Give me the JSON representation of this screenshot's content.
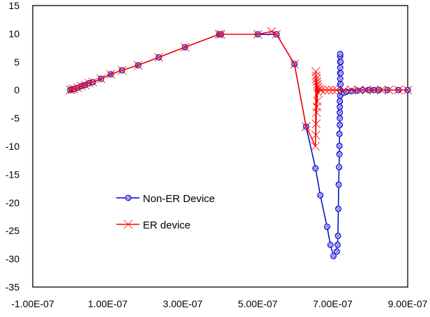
{
  "chart_data": {
    "type": "scatter",
    "title": "",
    "xlabel": "",
    "ylabel": "",
    "xlim": [
      -1e-07,
      9e-07
    ],
    "ylim": [
      -35,
      15
    ],
    "x_ticks": [
      "-1.00E-07",
      "1.00E-07",
      "3.00E-07",
      "5.00E-07",
      "7.00E-07",
      "9.00E-07"
    ],
    "x_tick_values": [
      -1e-07,
      1e-07,
      3e-07,
      5e-07,
      7e-07,
      9e-07
    ],
    "y_ticks": [
      "15",
      "10",
      "5",
      "0",
      "-5",
      "-10",
      "-15",
      "-20",
      "-25",
      "-30",
      "-35"
    ],
    "y_tick_values": [
      15,
      10,
      5,
      0,
      -5,
      -10,
      -15,
      -20,
      -25,
      -30,
      -35
    ],
    "grid": false,
    "legend_placement": "center-left",
    "series": [
      {
        "name": "Non-ER Device",
        "color": "#0000cc",
        "marker": "hatched-circle",
        "points": [
          [
            0,
            0
          ],
          [
            5e-09,
            0.1
          ],
          [
            1e-08,
            0.2
          ],
          [
            2e-08,
            0.4
          ],
          [
            3e-08,
            0.7
          ],
          [
            4e-08,
            0.9
          ],
          [
            5e-08,
            1.2
          ],
          [
            6e-08,
            1.4
          ],
          [
            8.2e-08,
            2.0
          ],
          [
            1.08e-07,
            2.8
          ],
          [
            1.38e-07,
            3.5
          ],
          [
            1.81e-07,
            4.4
          ],
          [
            2.36e-07,
            5.8
          ],
          [
            3.06e-07,
            7.6
          ],
          [
            3.97e-07,
            9.9
          ],
          [
            4.02e-07,
            9.9
          ],
          [
            5e-07,
            9.9
          ],
          [
            5.5e-07,
            9.9
          ],
          [
            5.98e-07,
            4.6
          ],
          [
            6.29e-07,
            -6.5
          ],
          [
            6.54e-07,
            -13.9
          ],
          [
            6.67e-07,
            -18.7
          ],
          [
            6.85e-07,
            -24.3
          ],
          [
            6.94e-07,
            -27.5
          ],
          [
            7.02e-07,
            -29.5
          ],
          [
            7.11e-07,
            -28.7
          ],
          [
            7.13e-07,
            -27.5
          ],
          [
            7.14e-07,
            -25.9
          ],
          [
            7.15e-07,
            -21.1
          ],
          [
            7.16e-07,
            -16.8
          ],
          [
            7.17e-07,
            -13.7
          ],
          [
            7.18e-07,
            -11.4
          ],
          [
            7.18e-07,
            -9.9
          ],
          [
            7.18e-07,
            -7.8
          ],
          [
            7.19e-07,
            -6.2
          ],
          [
            7.19e-07,
            -5
          ],
          [
            7.19e-07,
            -4
          ],
          [
            7.19e-07,
            -3
          ],
          [
            7.19e-07,
            -2
          ],
          [
            7.2e-07,
            -1
          ],
          [
            7.2e-07,
            0
          ],
          [
            7.2e-07,
            1
          ],
          [
            7.2e-07,
            2
          ],
          [
            7.2e-07,
            3
          ],
          [
            7.2e-07,
            4
          ],
          [
            7.2e-07,
            5
          ],
          [
            7.2e-07,
            6
          ],
          [
            7.2e-07,
            6.4
          ],
          [
            7.21e-07,
            5
          ],
          [
            7.21e-07,
            3
          ],
          [
            7.21e-07,
            1
          ],
          [
            7.22e-07,
            -0.3
          ],
          [
            7.3e-07,
            -0.5
          ],
          [
            7.37e-07,
            -0.3
          ],
          [
            7.5e-07,
            -0.2
          ],
          [
            7.66e-07,
            -0.1
          ],
          [
            7.8e-07,
            0
          ],
          [
            7.95e-07,
            0
          ],
          [
            8.1e-07,
            0
          ],
          [
            8.24e-07,
            0
          ],
          [
            8.46e-07,
            0
          ],
          [
            8.75e-07,
            0
          ],
          [
            9e-07,
            0
          ]
        ]
      },
      {
        "name": "ER device",
        "color": "#ff0000",
        "marker": "x",
        "points": [
          [
            0,
            0
          ],
          [
            5e-09,
            0.1
          ],
          [
            1e-08,
            0.2
          ],
          [
            2e-08,
            0.4
          ],
          [
            3e-08,
            0.7
          ],
          [
            4e-08,
            0.9
          ],
          [
            5e-08,
            1.2
          ],
          [
            6e-08,
            1.4
          ],
          [
            8.2e-08,
            2.0
          ],
          [
            1.08e-07,
            2.8
          ],
          [
            1.38e-07,
            3.5
          ],
          [
            1.81e-07,
            4.4
          ],
          [
            2.36e-07,
            5.8
          ],
          [
            3.06e-07,
            7.6
          ],
          [
            3.97e-07,
            9.9
          ],
          [
            4.02e-07,
            9.9
          ],
          [
            5e-07,
            9.9
          ],
          [
            5.37e-07,
            10.4
          ],
          [
            5.5e-07,
            9.9
          ],
          [
            5.98e-07,
            4.6
          ],
          [
            6.29e-07,
            -6.5
          ],
          [
            6.54e-07,
            -10.0
          ],
          [
            6.55e-07,
            3.3
          ],
          [
            6.55e-07,
            -8
          ],
          [
            6.56e-07,
            2.5
          ],
          [
            6.56e-07,
            -6
          ],
          [
            6.57e-07,
            2
          ],
          [
            6.57e-07,
            -4
          ],
          [
            6.58e-07,
            1.5
          ],
          [
            6.58e-07,
            -3
          ],
          [
            6.59e-07,
            1
          ],
          [
            6.59e-07,
            -2
          ],
          [
            6.6e-07,
            0.5
          ],
          [
            6.62e-07,
            -0.5
          ],
          [
            6.65e-07,
            0.2
          ],
          [
            6.7e-07,
            0
          ],
          [
            6.8e-07,
            0
          ],
          [
            6.9e-07,
            0
          ],
          [
            7e-07,
            0
          ],
          [
            7.1e-07,
            0
          ],
          [
            7.3e-07,
            0
          ],
          [
            7.5e-07,
            0
          ],
          [
            7.7e-07,
            0
          ],
          [
            7.9e-07,
            0
          ],
          [
            8.1e-07,
            0
          ],
          [
            8.3e-07,
            0
          ],
          [
            8.5e-07,
            0
          ],
          [
            8.75e-07,
            0
          ],
          [
            9e-07,
            0
          ]
        ]
      }
    ]
  }
}
